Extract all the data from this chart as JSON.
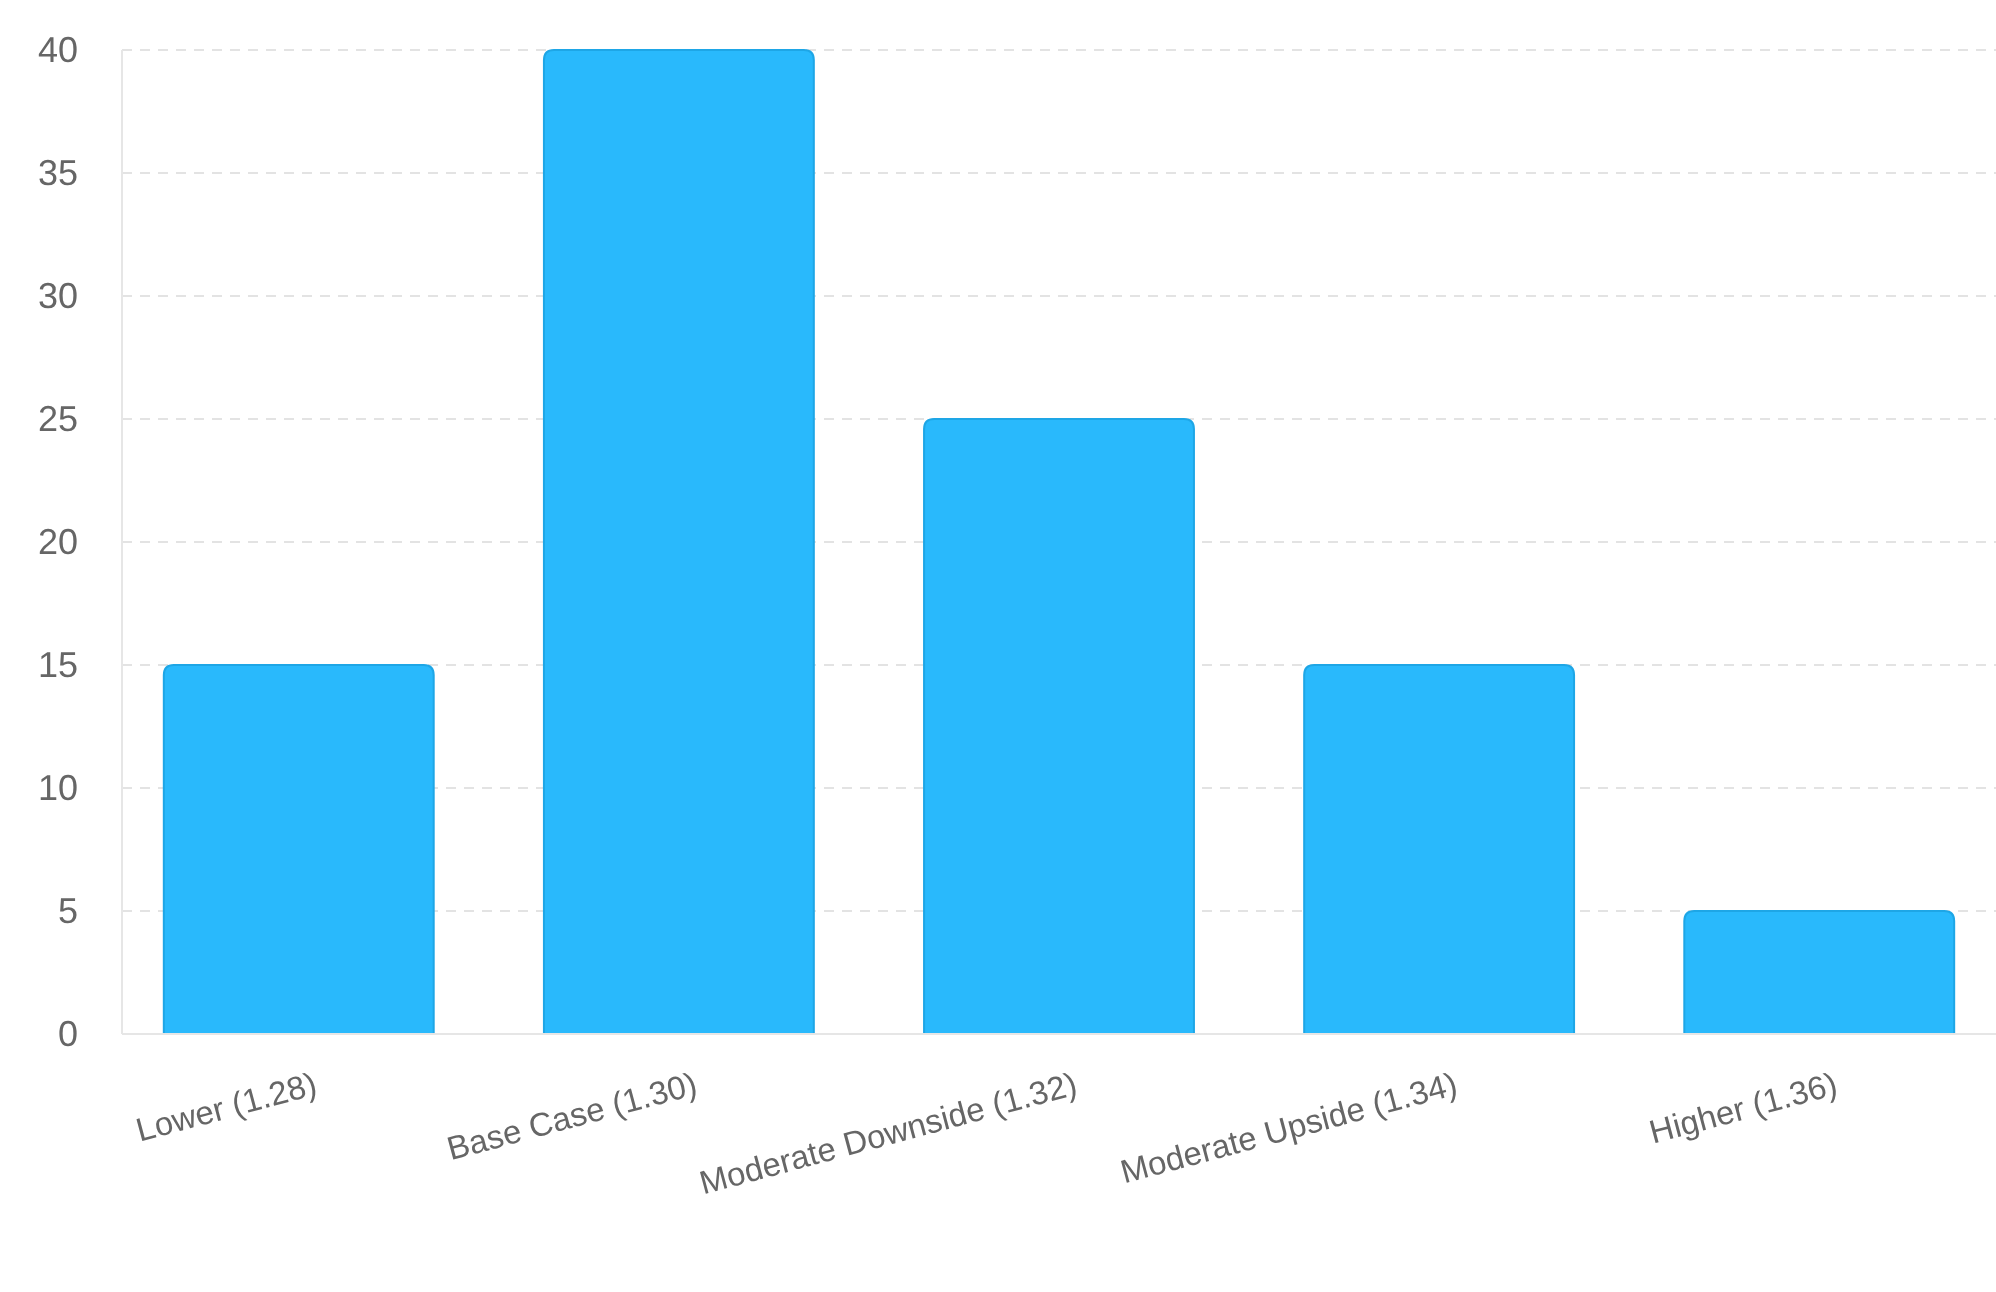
{
  "chart_data": {
    "type": "bar",
    "categories": [
      "Lower (1.28)",
      "Base Case (1.30)",
      "Moderate Downside (1.32)",
      "Moderate Upside (1.34)",
      "Higher (1.36)"
    ],
    "values": [
      15,
      40,
      25,
      15,
      5
    ],
    "color": "#29b9fc",
    "ylim": [
      0,
      40
    ],
    "yticks": [
      0,
      5,
      10,
      15,
      20,
      25,
      30,
      35,
      40
    ],
    "grid": "y"
  }
}
